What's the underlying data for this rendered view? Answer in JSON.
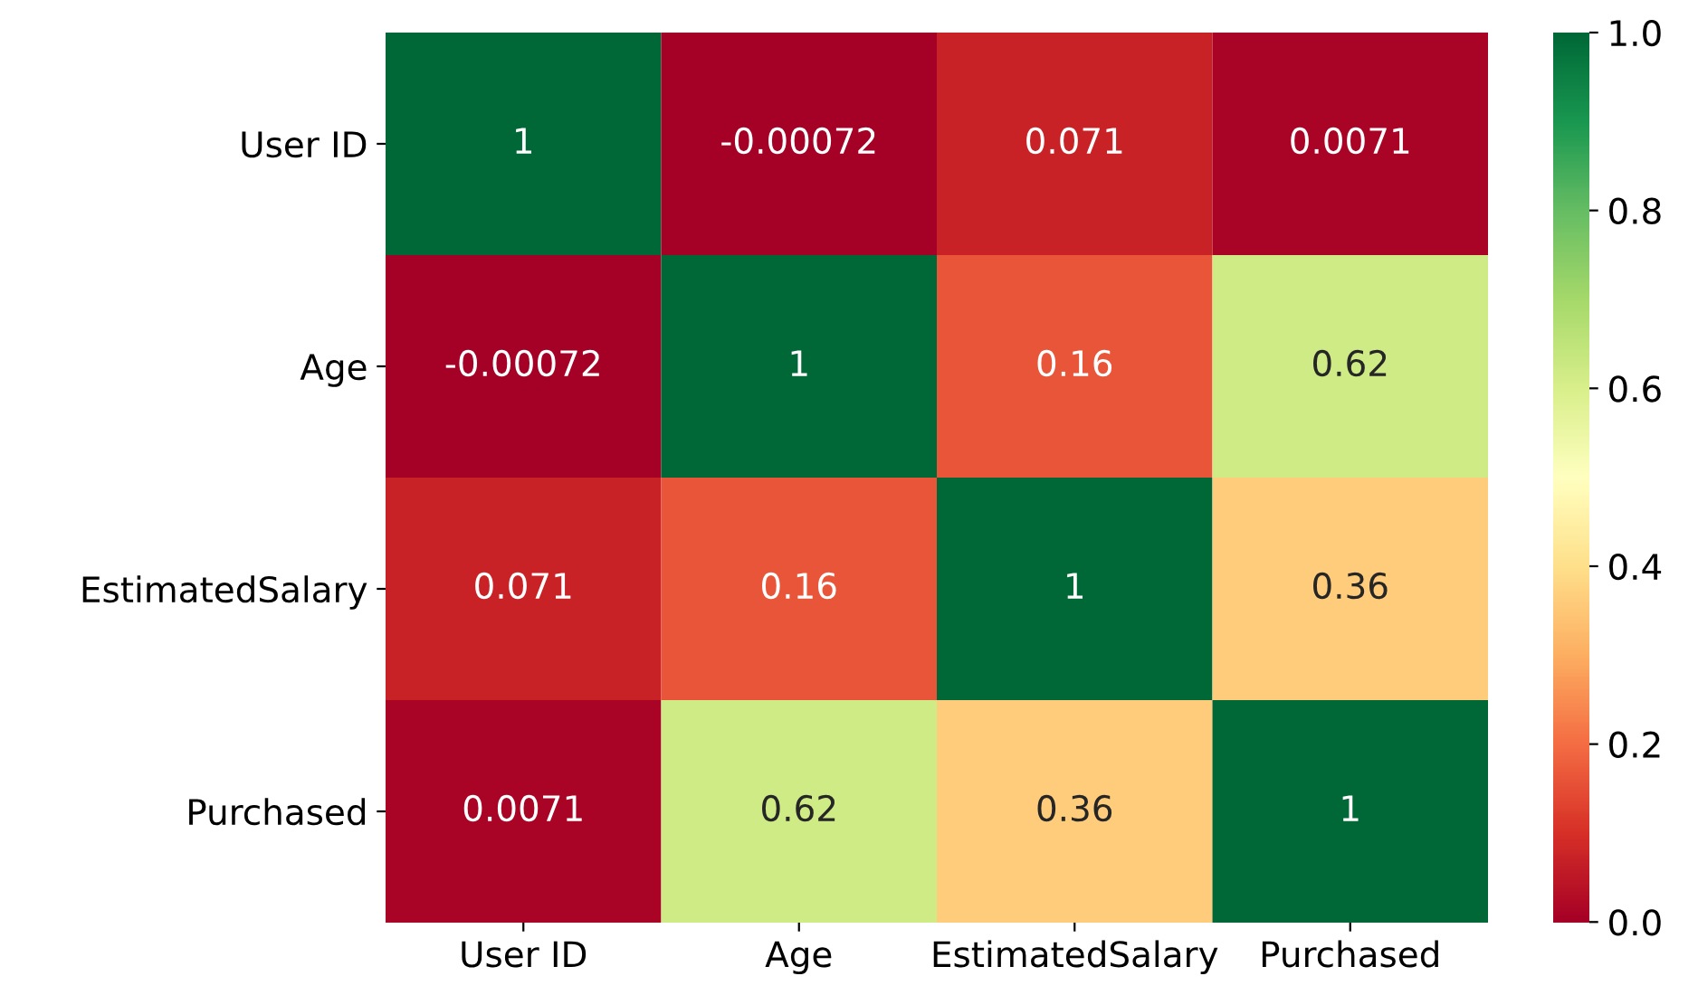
{
  "chart_data": {
    "type": "heatmap",
    "categories": [
      "User ID",
      "Age",
      "EstimatedSalary",
      "Purchased"
    ],
    "y_categories": [
      "User ID",
      "Age",
      "EstimatedSalary",
      "Purchased"
    ],
    "cells": [
      [
        1,
        -0.00072,
        0.071,
        0.0071
      ],
      [
        -0.00072,
        1,
        0.16,
        0.62
      ],
      [
        0.071,
        0.16,
        1,
        0.36
      ],
      [
        0.0071,
        0.62,
        0.36,
        1
      ]
    ],
    "data_labels": true,
    "clim": [
      -0.00072,
      1
    ],
    "cticks": [
      {
        "value": 0,
        "label": "0.0"
      },
      {
        "value": 0.2,
        "label": "0.2"
      },
      {
        "value": 0.4,
        "label": "0.4"
      },
      {
        "value": 0.6,
        "label": "0.6"
      },
      {
        "value": 0.8,
        "label": "0.8"
      },
      {
        "value": 1,
        "label": "1.0"
      }
    ]
  }
}
